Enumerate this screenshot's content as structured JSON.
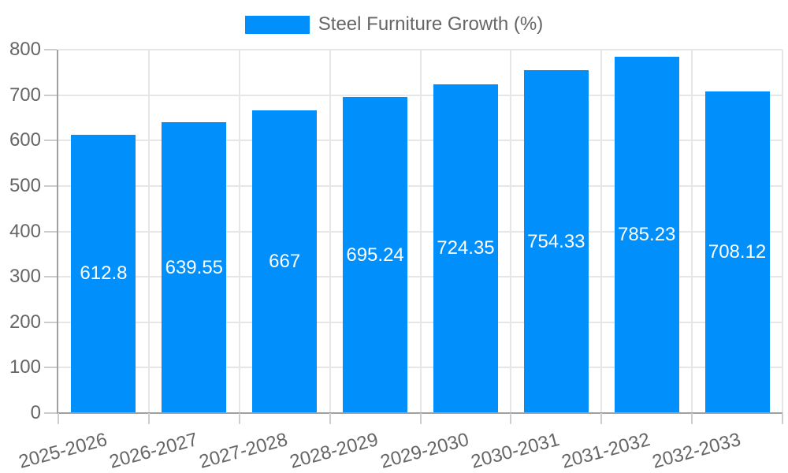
{
  "chart_data": {
    "type": "bar",
    "title": "Steel Furniture Growth (%)",
    "categories": [
      "2025-2026",
      "2026-2027",
      "2027-2028",
      "2028-2029",
      "2029-2030",
      "2030-2031",
      "2031-2032",
      "2032-2033"
    ],
    "series": [
      {
        "name": "Steel Furniture Growth (%)",
        "values": [
          612.8,
          639.55,
          667,
          695.24,
          724.35,
          754.33,
          785.23,
          708.12
        ]
      }
    ],
    "value_labels": [
      "612.8",
      "639.55",
      "667",
      "695.24",
      "724.35",
      "754.33",
      "785.23",
      "708.12"
    ],
    "xlabel": "",
    "ylabel": "",
    "ylim": [
      0,
      800
    ],
    "yticks": [
      0,
      100,
      200,
      300,
      400,
      500,
      600,
      700,
      800
    ],
    "grid": true,
    "legend_position": "top-center",
    "x_label_rotation_deg": -15,
    "colors": {
      "bar": "#008ffb",
      "value_label": "#ffffff",
      "axis_text": "#666666",
      "grid_line": "#e6e6e6",
      "axis_line": "#a0a0a0",
      "tick_mark": "#cdcdcd",
      "background": "#ffffff"
    }
  }
}
